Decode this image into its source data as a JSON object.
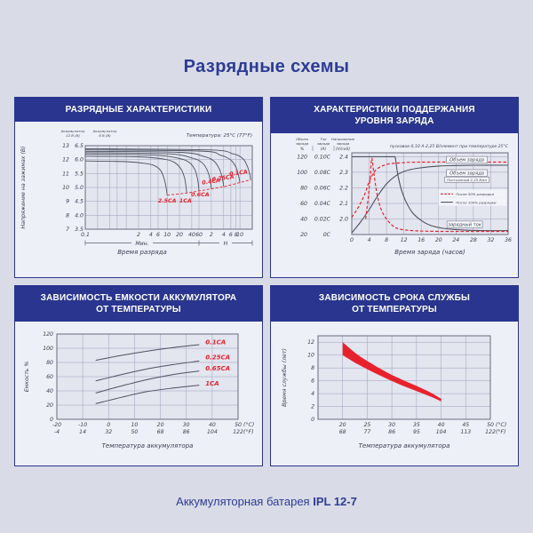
{
  "title": "Разрядные схемы",
  "footer": {
    "prefix": "Аккумуляторная батарея",
    "model": "IPL 12-7"
  },
  "colors": {
    "header_bg": "#29358e",
    "page_bg": "#d9dbe7",
    "panel_bg": "#eef0f8",
    "plot_bg": "#e3e5ef",
    "grid": "#9aa0b8",
    "axis": "#5a5f70",
    "curve": "#4c5260",
    "red": "#e8222d",
    "title_text": "#2c3c96"
  },
  "panels": {
    "discharge": {
      "header_line1": "РАЗРЯДНЫЕ ХАРАКТЕРИСТИКИ",
      "header_line2": ""
    },
    "charge": {
      "header_line1": "ХАРАКТЕРИСТИКИ ПОДДЕРЖАНИЯ",
      "header_line2": "УРОВНЯ ЗАРЯДА"
    },
    "capacity": {
      "header_line1": "ЗАВИСИМОСТЬ ЕМКОСТИ АККУМУЛЯТОРА",
      "header_line2": "ОТ ТЕМПЕРАТУРЫ"
    },
    "life": {
      "header_line1": "ЗАВИСИМОСТЬ СРОКА СЛУЖБЫ",
      "header_line2": "ОТ ТЕМПЕРАТУРЫ"
    }
  },
  "chart_data": [
    {
      "id": "discharge",
      "type": "line",
      "temperature_note": "Температура: 25°C (77°F)",
      "scale_12v": [
        "Аккумулятор",
        "12 В (В)"
      ],
      "scale_6v": [
        "Аккумулятор",
        "6 В (В)"
      ],
      "ylabel": "Напряжение на зажимах (В)",
      "xlabel": "Время разряда",
      "sections": {
        "minutes": "Мин.",
        "hours": "Н"
      },
      "yticks_12v": [
        "13",
        "12",
        "11",
        "10",
        "9",
        "8",
        "7"
      ],
      "yticks_6v": [
        "6.5",
        "6.0",
        "5.5",
        "5.0",
        "4.5",
        "4.0",
        "3.5"
      ],
      "y_domain": [
        7,
        13
      ],
      "x_domain_minutes": [
        0.1,
        1200
      ],
      "xticks": [
        {
          "t": 0.1,
          "label": "0.1"
        },
        {
          "t": 2,
          "label": "2"
        },
        {
          "t": 4,
          "label": "4"
        },
        {
          "t": 6,
          "label": "6"
        },
        {
          "t": 10,
          "label": "10"
        },
        {
          "t": 20,
          "label": "20"
        },
        {
          "t": 40,
          "label": "40"
        },
        {
          "t": 60,
          "label": "60"
        },
        {
          "t": 120,
          "label": "2"
        },
        {
          "t": 240,
          "label": "4"
        },
        {
          "t": 360,
          "label": "6"
        },
        {
          "t": 480,
          "label": "8"
        },
        {
          "t": 600,
          "label": "10"
        }
      ],
      "curves": [
        {
          "label": "2.5CA",
          "label_at": [
            10,
            8.9,
            0
          ],
          "points": [
            [
              0.1,
              11.9
            ],
            [
              1,
              11.85
            ],
            [
              3,
              11.72
            ],
            [
              5,
              11.55
            ],
            [
              7,
              11.2
            ],
            [
              8.5,
              10.6
            ],
            [
              9.5,
              9.95
            ],
            [
              10,
              9.45
            ]
          ]
        },
        {
          "label": "1CA",
          "label_at": [
            28,
            8.9,
            0
          ],
          "points": [
            [
              0.1,
              12.25
            ],
            [
              2,
              12.2
            ],
            [
              8,
              12.05
            ],
            [
              15,
              11.8
            ],
            [
              22,
              11.3
            ],
            [
              27,
              10.6
            ],
            [
              30,
              9.6
            ]
          ]
        },
        {
          "label": "0.6CA",
          "label_at": [
            64,
            9.35,
            0
          ],
          "points": [
            [
              0.1,
              12.4
            ],
            [
              5,
              12.32
            ],
            [
              20,
              12.08
            ],
            [
              35,
              11.78
            ],
            [
              48,
              11.25
            ],
            [
              56,
              10.5
            ],
            [
              60,
              9.75
            ]
          ]
        },
        {
          "label": "0.4CA",
          "label_at": [
            120,
            10.3,
            -8
          ],
          "points": [
            [
              0.1,
              12.5
            ],
            [
              10,
              12.42
            ],
            [
              40,
              12.12
            ],
            [
              70,
              11.8
            ],
            [
              95,
              11.25
            ],
            [
              112,
              10.55
            ],
            [
              120,
              9.9
            ]
          ]
        },
        {
          "label": "0.25CA",
          "label_at": [
            235,
            10.55,
            -8
          ],
          "points": [
            [
              0.1,
              12.6
            ],
            [
              20,
              12.52
            ],
            [
              80,
              12.22
            ],
            [
              140,
              11.88
            ],
            [
              190,
              11.3
            ],
            [
              225,
              10.6
            ],
            [
              240,
              10.05
            ]
          ]
        },
        {
          "label": "0.1CA",
          "label_at": [
            560,
            10.92,
            -8
          ],
          "points": [
            [
              0.1,
              12.7
            ],
            [
              60,
              12.62
            ],
            [
              200,
              12.32
            ],
            [
              350,
              12.0
            ],
            [
              480,
              11.45
            ],
            [
              560,
              10.8
            ],
            [
              600,
              10.35
            ]
          ]
        },
        {
          "label": "",
          "label_at": null,
          "points": [
            [
              0.1,
              12.78
            ],
            [
              100,
              12.7
            ],
            [
              400,
              12.42
            ],
            [
              700,
              12.08
            ],
            [
              900,
              11.55
            ],
            [
              1040,
              10.95
            ],
            [
              1100,
              10.55
            ]
          ]
        }
      ],
      "final_voltage_line": [
        [
          10,
          9.45
        ],
        [
          30,
          9.6
        ],
        [
          60,
          9.75
        ],
        [
          120,
          9.9
        ],
        [
          240,
          10.05
        ],
        [
          600,
          10.35
        ],
        [
          1100,
          10.55
        ]
      ]
    },
    {
      "id": "charge",
      "type": "line",
      "note": "пусковое 0,10 А-2,25 В/элемент при температуре 25°C",
      "columns": [
        {
          "header": [
            "Объем",
            "заряда"
          ],
          "unit": "%"
        },
        {
          "header": [
            "Ток",
            "заряда"
          ],
          "unit": "(A)"
        },
        {
          "header": [
            "Напряжение",
            "заряда"
          ],
          "unit": "(V/cell)"
        }
      ],
      "pct_ticks": [
        "120",
        "100",
        "80",
        "60",
        "40",
        "20"
      ],
      "amp_ticks": [
        "0.10C",
        "0.08C",
        "0.06C",
        "0.04C",
        "0.02C",
        "0C"
      ],
      "volt_ticks": [
        "2.4",
        "2.3",
        "2.2",
        "2.1",
        "2.0"
      ],
      "x_domain": [
        0,
        36
      ],
      "xticks": [
        "0",
        "4",
        "8",
        "12",
        "16",
        "20",
        "24",
        "28",
        "32",
        "36"
      ],
      "xlabel": "Время заряда (часов)",
      "labels": {
        "volume_top": "Объем заряда",
        "volume_mid": "Объем заряда",
        "const_voltage": "Постоянный 2,25 В/эл",
        "after50": "После 50% разрядки",
        "after100": "После 100% разрядки",
        "current": "зарядный ток"
      },
      "series": {
        "volume_after_50_dashed": [
          [
            0,
            42
          ],
          [
            1.5,
            55
          ],
          [
            3,
            72
          ],
          [
            4,
            88
          ],
          [
            5,
            99
          ],
          [
            6,
            105
          ],
          [
            8,
            110
          ],
          [
            11,
            112
          ],
          [
            16,
            113
          ],
          [
            36,
            113
          ]
        ],
        "volume_after_100_solid": [
          [
            0,
            22
          ],
          [
            2,
            36
          ],
          [
            4,
            52
          ],
          [
            6,
            70
          ],
          [
            8,
            85
          ],
          [
            10,
            95
          ],
          [
            12,
            101
          ],
          [
            15,
            105
          ],
          [
            20,
            108
          ],
          [
            28,
            109
          ],
          [
            36,
            109
          ]
        ],
        "voltage_top_solid": [
          [
            0,
            120
          ],
          [
            10,
            120
          ]
        ],
        "current_after_100_solid": [
          [
            10,
            120
          ],
          [
            10.6,
            97
          ],
          [
            11.4,
            78
          ],
          [
            12.5,
            62
          ],
          [
            14,
            48
          ],
          [
            16,
            38
          ],
          [
            18,
            32
          ],
          [
            21,
            28
          ],
          [
            25,
            26
          ],
          [
            30,
            25
          ],
          [
            36,
            25
          ]
        ],
        "current_after_50_dashed": [
          [
            3.2,
            40
          ],
          [
            3.8,
            68
          ],
          [
            4.3,
            98
          ],
          [
            4.6,
            118
          ],
          [
            5,
            103
          ],
          [
            5.8,
            72
          ],
          [
            6.8,
            52
          ],
          [
            8,
            40
          ],
          [
            9.5,
            31
          ],
          [
            11,
            27
          ],
          [
            14,
            25
          ],
          [
            20,
            24
          ],
          [
            36,
            24
          ]
        ]
      }
    },
    {
      "id": "capacity",
      "type": "line",
      "ylabel": "Емкость %",
      "xlabel": "Температура аккумулятора",
      "yticks": [
        "120",
        "100",
        "80",
        "60",
        "40",
        "20",
        "0"
      ],
      "y_domain": [
        0,
        120
      ],
      "x_domain_c": [
        -20,
        50
      ],
      "xticks_c": [
        "-20",
        "-10",
        "0",
        "10",
        "20",
        "30",
        "40",
        "50"
      ],
      "xticks_f": [
        "-4",
        "14",
        "32",
        "50",
        "68",
        "86",
        "104",
        "122"
      ],
      "unit_c": "(°C)",
      "unit_f": "(°F)",
      "curves": [
        {
          "label": "0.1CA",
          "label_at": 108,
          "points": [
            [
              -5,
              83
            ],
            [
              5,
              90
            ],
            [
              15,
              96
            ],
            [
              25,
              101
            ],
            [
              35,
              105
            ]
          ]
        },
        {
          "label": "0.25CA",
          "label_at": 87,
          "points": [
            [
              -5,
              54
            ],
            [
              5,
              63
            ],
            [
              15,
              71
            ],
            [
              25,
              77
            ],
            [
              35,
              82
            ]
          ]
        },
        {
          "label": "0.65CA",
          "label_at": 71,
          "points": [
            [
              -5,
              37
            ],
            [
              5,
              47
            ],
            [
              15,
              56
            ],
            [
              25,
              63
            ],
            [
              35,
              68
            ]
          ]
        },
        {
          "label": "1CA",
          "label_at": 50,
          "points": [
            [
              -5,
              22
            ],
            [
              5,
              31
            ],
            [
              15,
              39
            ],
            [
              25,
              44
            ],
            [
              35,
              48
            ]
          ]
        }
      ]
    },
    {
      "id": "life",
      "type": "band",
      "ylabel": "Время службы (лет)",
      "xlabel": "Температура аккумулятора",
      "yticks": [
        "12",
        "10",
        "8",
        "6",
        "4",
        "2",
        "0"
      ],
      "y_domain": [
        0,
        13
      ],
      "x_domain_c": [
        15,
        50
      ],
      "xticks_c": [
        "20",
        "25",
        "30",
        "35",
        "40",
        "45",
        "50"
      ],
      "xticks_f": [
        "68",
        "77",
        "86",
        "95",
        "104",
        "113",
        "122"
      ],
      "unit_c": "(°C)",
      "unit_f": "(°F)",
      "band_upper": [
        [
          20,
          12
        ],
        [
          23,
          10.1
        ],
        [
          26,
          8.6
        ],
        [
          29,
          7.3
        ],
        [
          32,
          6.2
        ],
        [
          35,
          5.2
        ],
        [
          38,
          4.1
        ],
        [
          40,
          3.2
        ]
      ],
      "band_lower": [
        [
          20,
          10
        ],
        [
          23,
          8.6
        ],
        [
          26,
          7.4
        ],
        [
          29,
          6.3
        ],
        [
          32,
          5.3
        ],
        [
          35,
          4.4
        ],
        [
          38,
          3.5
        ],
        [
          40,
          2.8
        ]
      ]
    }
  ]
}
